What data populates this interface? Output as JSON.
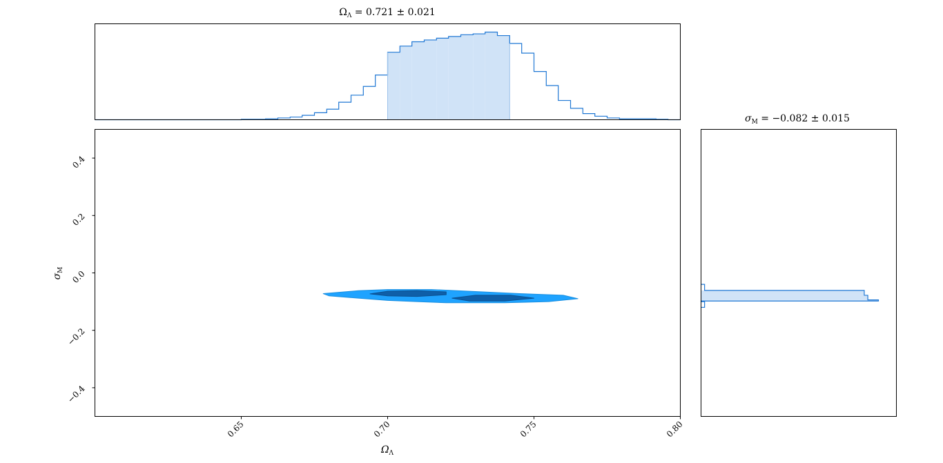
{
  "colors": {
    "line": "#1f77d4",
    "fill_light": "#d0e3f7",
    "contour_outer": "#1fa3ff",
    "contour_inner": "#0f5fa8",
    "frame": "#000000"
  },
  "chart_data": [
    {
      "type": "histogram",
      "panel": "top-marginal",
      "title": "Ω_Λ = 0.721 ± 0.021",
      "xlim": [
        0.6,
        0.8
      ],
      "bin_edges": [
        0.6,
        0.6042,
        0.6083,
        0.6125,
        0.6167,
        0.6208,
        0.625,
        0.6292,
        0.6333,
        0.6375,
        0.6417,
        0.6458,
        0.65,
        0.6542,
        0.6583,
        0.6625,
        0.6667,
        0.6708,
        0.675,
        0.6792,
        0.6833,
        0.6875,
        0.6917,
        0.6958,
        0.7,
        0.7042,
        0.7083,
        0.7125,
        0.7167,
        0.7208,
        0.725,
        0.7292,
        0.7333,
        0.7375,
        0.7417,
        0.7458,
        0.75,
        0.7542,
        0.7583,
        0.7625,
        0.7667,
        0.7708,
        0.775,
        0.7792,
        0.7833,
        0.7875,
        0.7917,
        0.7958,
        0.8
      ],
      "counts": [
        0,
        0,
        0,
        0,
        0,
        0,
        0,
        0,
        0,
        0,
        0,
        0,
        0.005,
        0.005,
        0.01,
        0.02,
        0.03,
        0.05,
        0.08,
        0.12,
        0.2,
        0.28,
        0.38,
        0.51,
        0.77,
        0.84,
        0.89,
        0.91,
        0.93,
        0.95,
        0.97,
        0.98,
        1.0,
        0.96,
        0.87,
        0.76,
        0.55,
        0.39,
        0.22,
        0.13,
        0.07,
        0.04,
        0.02,
        0.01,
        0.01,
        0.01,
        0.005,
        0.0
      ],
      "shaded_interval": [
        0.7,
        0.7417
      ]
    },
    {
      "type": "contour",
      "panel": "joint",
      "xlabel": "Ω_Λ",
      "ylabel": "σ_M",
      "xlim": [
        0.6,
        0.8
      ],
      "ylim": [
        -0.5,
        0.5
      ],
      "xticks": [
        "0.65",
        "0.70",
        "0.75",
        "0.80"
      ],
      "xtick_values": [
        0.65,
        0.7,
        0.75,
        0.8
      ],
      "yticks": [
        "0.4",
        "0.2",
        "0.0",
        "−0.2",
        "−0.4"
      ],
      "ytick_values": [
        0.4,
        0.2,
        0.0,
        -0.2,
        -0.4
      ],
      "contours": [
        {
          "level": "outer",
          "points": [
            [
              0.678,
              -0.072
            ],
            [
              0.69,
              -0.062
            ],
            [
              0.7,
              -0.058
            ],
            [
              0.715,
              -0.058
            ],
            [
              0.73,
              -0.065
            ],
            [
              0.745,
              -0.072
            ],
            [
              0.76,
              -0.078
            ],
            [
              0.765,
              -0.09
            ],
            [
              0.755,
              -0.1
            ],
            [
              0.74,
              -0.104
            ],
            [
              0.72,
              -0.104
            ],
            [
              0.71,
              -0.1
            ],
            [
              0.7,
              -0.096
            ],
            [
              0.69,
              -0.088
            ],
            [
              0.68,
              -0.08
            ]
          ]
        },
        {
          "level": "inner-a",
          "points": [
            [
              0.694,
              -0.073
            ],
            [
              0.7,
              -0.064
            ],
            [
              0.71,
              -0.062
            ],
            [
              0.72,
              -0.066
            ],
            [
              0.72,
              -0.076
            ],
            [
              0.71,
              -0.082
            ],
            [
              0.7,
              -0.08
            ]
          ]
        },
        {
          "level": "inner-b",
          "points": [
            [
              0.722,
              -0.088
            ],
            [
              0.73,
              -0.078
            ],
            [
              0.742,
              -0.078
            ],
            [
              0.75,
              -0.088
            ],
            [
              0.74,
              -0.098
            ],
            [
              0.728,
              -0.098
            ]
          ]
        }
      ]
    },
    {
      "type": "histogram",
      "panel": "right-marginal",
      "orientation": "horizontal",
      "title": "σ_M = −0.082 ± 0.015",
      "ylim": [
        -0.5,
        0.5
      ],
      "bin_edges": [
        -0.12,
        -0.1,
        -0.098,
        -0.094,
        -0.078,
        -0.061,
        -0.04
      ],
      "counts": [
        0.02,
        0.0,
        1.0,
        0.94,
        0.92,
        0.02
      ],
      "shaded_interval": [
        -0.098,
        -0.063
      ]
    }
  ],
  "labels": {
    "top_title": "Ω",
    "top_title_sub": "Λ",
    "top_title_rest": " = 0.721 ± 0.021",
    "right_title": "σ",
    "right_title_sub": "M",
    "right_title_rest": " = −0.082 ± 0.015",
    "xlabel": "Ω",
    "xlabel_sub": "Λ",
    "ylabel": "σ",
    "ylabel_sub": "M"
  }
}
